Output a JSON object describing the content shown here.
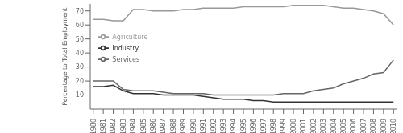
{
  "chart_data": {
    "type": "line",
    "ylabel": "Percentage to Total Employment",
    "x": [
      1980,
      1981,
      1982,
      1983,
      1984,
      1985,
      1986,
      1987,
      1988,
      1989,
      1990,
      1991,
      1992,
      1993,
      1994,
      1995,
      1996,
      1997,
      1998,
      1999,
      2000,
      2001,
      2002,
      2003,
      2004,
      2005,
      2006,
      2007,
      2008,
      2009,
      2010
    ],
    "series": [
      {
        "name": "Agriculture",
        "color": "#999999",
        "values": [
          64,
          64,
          63,
          63,
          71,
          71,
          70,
          70,
          70,
          71,
          71,
          72,
          72,
          72,
          72,
          73,
          73,
          73,
          73,
          73,
          74,
          74,
          74,
          74,
          73,
          72,
          72,
          71,
          70,
          68,
          60
        ]
      },
      {
        "name": "Services",
        "color": "#666666",
        "values": [
          20,
          20,
          20,
          14,
          13,
          13,
          13,
          12,
          11,
          11,
          11,
          11,
          10,
          10,
          10,
          10,
          10,
          10,
          10,
          11,
          11,
          11,
          13,
          14,
          15,
          18,
          20,
          22,
          25,
          26,
          35
        ]
      },
      {
        "name": "Industry",
        "color": "#333333",
        "values": [
          16,
          16,
          17,
          13,
          11,
          11,
          11,
          10,
          10,
          10,
          10,
          9,
          8,
          7,
          7,
          7,
          6,
          6,
          5,
          5,
          5,
          5,
          5,
          5,
          5,
          5,
          5,
          5,
          5,
          5,
          5
        ]
      }
    ],
    "xlim": [
      1979.7,
      2010.3
    ],
    "xticks": [
      1980,
      1981,
      1982,
      1983,
      1984,
      1985,
      1986,
      1987,
      1988,
      1989,
      1990,
      1991,
      1992,
      1993,
      1994,
      1995,
      1996,
      1997,
      1998,
      1999,
      2000,
      2001,
      2002,
      2003,
      2004,
      2005,
      2006,
      2007,
      2008,
      2009,
      2010
    ],
    "ylim": [
      0,
      75
    ],
    "yticks": [
      10,
      20,
      30,
      40,
      50,
      60,
      70
    ],
    "grid": false,
    "legend": "upper left"
  }
}
